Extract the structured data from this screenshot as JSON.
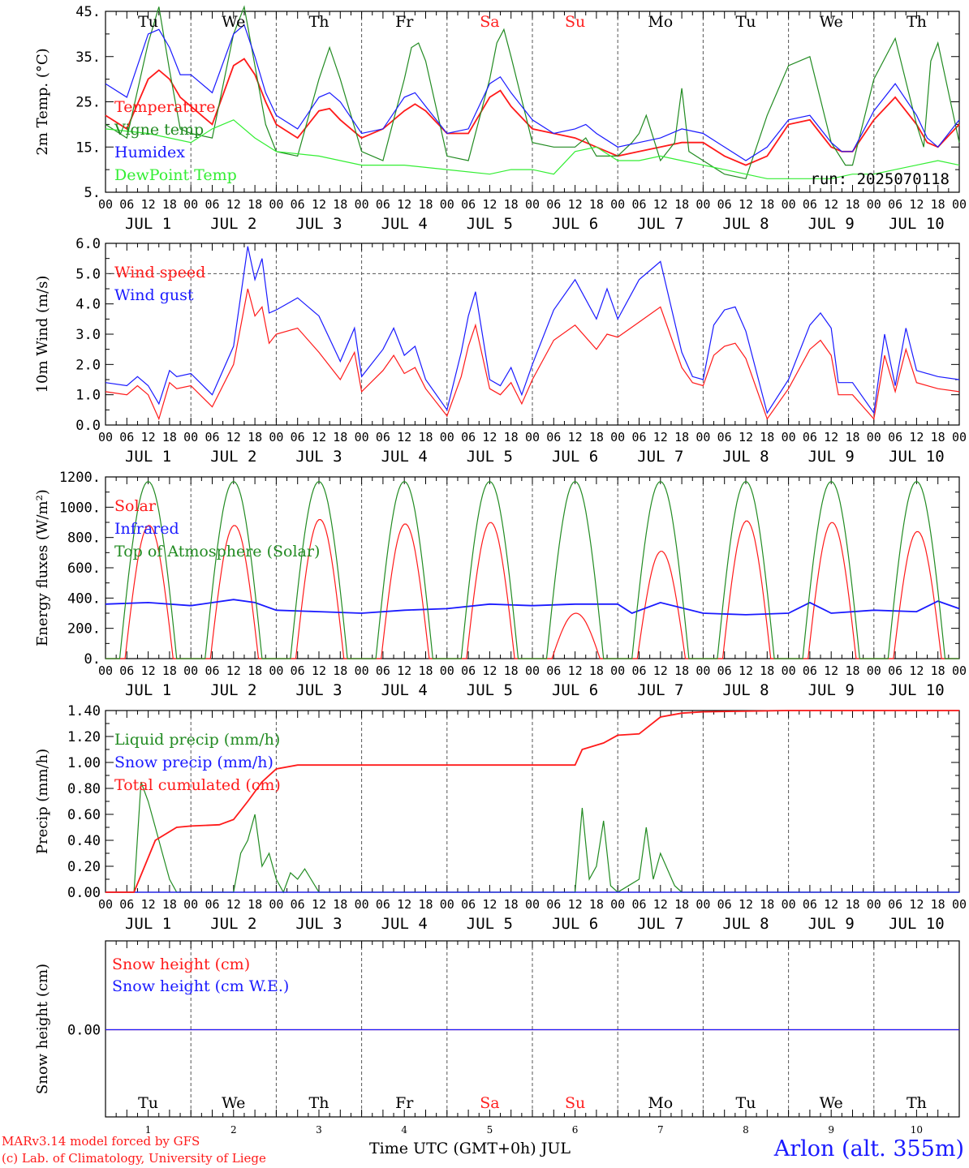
{
  "page": {
    "footer_left_1": "MARv3.14 model forced by GFS",
    "footer_left_2": "(c) Lab. of Climatology, University of Liege",
    "footer_center": "Time UTC (GMT+0h) JUL",
    "footer_right": "Arlon (alt. 355m)"
  },
  "colors": {
    "red": "#ff1a1a",
    "darkgreen": "#228b22",
    "blue": "#1a1aff",
    "lightgreen": "#33ee33",
    "weekend": "#ff2020",
    "black": "#000000"
  },
  "day_names": [
    "Tu",
    "We",
    "Th",
    "Fr",
    "Sa",
    "Su",
    "Mo",
    "Tu",
    "We",
    "Th"
  ],
  "weekend_days": [
    4,
    5
  ],
  "date_labels": [
    "JUL  1",
    "JUL  2",
    "JUL  3",
    "JUL  4",
    "JUL  5",
    "JUL  6",
    "JUL  7",
    "JUL  8",
    "JUL  9",
    "JUL 10"
  ],
  "hour_labels": [
    "00",
    "06",
    "12",
    "18"
  ],
  "day_numbers": [
    "1",
    "2",
    "3",
    "4",
    "5",
    "6",
    "7",
    "8",
    "9",
    "10"
  ],
  "chart_data": [
    {
      "type": "line",
      "ylabel": "2m Temp. (°C)",
      "ylim": [
        5,
        45
      ],
      "yticks": [
        "5.",
        "15.",
        "25.",
        "35.",
        "45."
      ],
      "annotation": "run: 2025070118",
      "x_unit": "hours since JUL 1 00 UTC",
      "series": [
        {
          "name": "Temperature",
          "color": "red",
          "x": [
            0,
            6,
            12,
            15,
            18,
            21,
            24,
            30,
            36,
            39,
            42,
            45,
            48,
            54,
            60,
            63,
            66,
            72,
            78,
            84,
            87,
            90,
            96,
            102,
            108,
            111,
            114,
            120,
            126,
            132,
            135,
            138,
            144,
            150,
            156,
            162,
            168,
            174,
            180,
            186,
            192,
            198,
            204,
            207,
            210,
            216,
            222,
            228,
            231,
            234,
            240
          ],
          "values": [
            22,
            19,
            30,
            32,
            30,
            26,
            24,
            20,
            33,
            34.5,
            31,
            25,
            20,
            17,
            23,
            23.5,
            21,
            17,
            19,
            23,
            24.5,
            23,
            18,
            18,
            26,
            27.5,
            24,
            19,
            18,
            17,
            16,
            15,
            13,
            14,
            15,
            16,
            16,
            13,
            11,
            13,
            20,
            21,
            15,
            14,
            14,
            21,
            26,
            20,
            16,
            15,
            20
          ]
        },
        {
          "name": "Vigne temp",
          "color": "darkgreen",
          "x": [
            0,
            6,
            12,
            15,
            18,
            21,
            24,
            30,
            36,
            39,
            42,
            45,
            48,
            54,
            60,
            63,
            66,
            72,
            78,
            84,
            86,
            88,
            90,
            96,
            102,
            108,
            110,
            112,
            114,
            120,
            126,
            132,
            135,
            138,
            144,
            148,
            150,
            152,
            156,
            160,
            162,
            164,
            168,
            174,
            180,
            186,
            192,
            198,
            204,
            208,
            210,
            216,
            222,
            228,
            230,
            232,
            234,
            240
          ],
          "values": [
            20,
            17,
            38,
            46,
            32,
            19,
            18,
            17,
            40,
            46,
            33,
            20,
            14,
            13,
            30,
            37,
            30,
            14,
            12,
            30,
            37,
            38,
            34,
            13,
            12,
            30,
            38,
            41,
            35,
            16,
            15,
            15,
            17,
            13,
            13,
            16,
            18,
            22,
            12,
            16,
            28,
            14,
            12,
            9,
            8,
            22,
            33,
            35,
            16,
            11,
            11,
            30,
            39,
            20,
            15,
            34,
            38,
            16
          ]
        },
        {
          "name": "Humidex",
          "color": "blue",
          "x": [
            0,
            6,
            12,
            15,
            18,
            21,
            24,
            30,
            36,
            39,
            42,
            45,
            48,
            54,
            60,
            63,
            66,
            72,
            78,
            84,
            87,
            90,
            96,
            102,
            108,
            111,
            114,
            120,
            126,
            132,
            135,
            138,
            144,
            150,
            156,
            162,
            168,
            174,
            180,
            186,
            192,
            198,
            204,
            207,
            210,
            216,
            222,
            228,
            231,
            234,
            240
          ],
          "values": [
            29,
            26,
            40,
            41,
            37,
            31,
            31,
            27,
            40,
            42,
            35,
            27,
            22,
            19,
            26,
            27,
            25,
            18,
            19,
            26,
            27,
            24,
            18,
            19,
            29,
            30.5,
            27,
            21,
            18,
            19,
            20,
            18,
            15,
            16,
            17,
            19,
            18,
            15,
            12,
            15,
            21,
            22,
            16,
            14,
            14,
            23,
            29,
            22,
            17,
            15,
            21
          ]
        },
        {
          "name": "DewPoint Temp",
          "color": "lightgreen",
          "x": [
            0,
            12,
            24,
            30,
            36,
            42,
            48,
            60,
            72,
            84,
            96,
            108,
            114,
            120,
            126,
            132,
            138,
            144,
            150,
            156,
            162,
            168,
            174,
            180,
            186,
            192,
            198,
            204,
            210,
            216,
            222,
            228,
            234,
            240
          ],
          "values": [
            19,
            18,
            16,
            19,
            21,
            17,
            14,
            13,
            11,
            11,
            10,
            9,
            10,
            10,
            9,
            14,
            15,
            12,
            12,
            13,
            12,
            11,
            10,
            9,
            8,
            8,
            8,
            8,
            9,
            9,
            10,
            11,
            12,
            11
          ]
        }
      ]
    },
    {
      "type": "line",
      "ylabel": "10m Wind (m/s)",
      "ylim": [
        0,
        6
      ],
      "yticks": [
        "0.0",
        "1.0",
        "2.0",
        "3.0",
        "4.0",
        "5.0",
        "6.0"
      ],
      "reference_line": 5,
      "x_unit": "hours since JUL 1 00 UTC",
      "series": [
        {
          "name": "Wind speed",
          "color": "red",
          "x": [
            0,
            6,
            9,
            12,
            15,
            18,
            20,
            24,
            30,
            36,
            40,
            42,
            44,
            46,
            48,
            54,
            60,
            66,
            70,
            72,
            78,
            81,
            84,
            87,
            90,
            96,
            100,
            102,
            104,
            108,
            111,
            114,
            117,
            120,
            126,
            132,
            138,
            141,
            144,
            150,
            156,
            162,
            165,
            168,
            171,
            174,
            177,
            180,
            186,
            192,
            198,
            201,
            204,
            206,
            210,
            216,
            219,
            222,
            225,
            228,
            234,
            240
          ],
          "values": [
            1.1,
            1.0,
            1.3,
            1.0,
            0.2,
            1.4,
            1.2,
            1.3,
            0.6,
            2.0,
            4.5,
            3.6,
            3.9,
            2.7,
            3.0,
            3.2,
            2.4,
            1.5,
            2.4,
            1.1,
            1.8,
            2.3,
            1.7,
            1.9,
            1.2,
            0.3,
            1.6,
            2.6,
            3.3,
            1.2,
            1.0,
            1.4,
            0.7,
            1.5,
            2.8,
            3.3,
            2.5,
            3.0,
            2.9,
            3.4,
            3.9,
            1.9,
            1.4,
            1.3,
            2.3,
            2.6,
            2.7,
            2.2,
            0.2,
            1.2,
            2.5,
            2.8,
            2.3,
            1.0,
            1.0,
            0.2,
            2.3,
            1.1,
            2.5,
            1.4,
            1.2,
            1.1
          ]
        },
        {
          "name": "Wind gust",
          "color": "blue",
          "x": [
            0,
            6,
            9,
            12,
            15,
            18,
            20,
            24,
            30,
            36,
            40,
            42,
            44,
            46,
            48,
            54,
            60,
            66,
            70,
            72,
            78,
            81,
            84,
            87,
            90,
            96,
            100,
            102,
            104,
            108,
            111,
            114,
            117,
            120,
            126,
            132,
            138,
            141,
            144,
            150,
            156,
            162,
            165,
            168,
            171,
            174,
            177,
            180,
            186,
            192,
            198,
            201,
            204,
            206,
            210,
            216,
            219,
            222,
            225,
            228,
            234,
            240
          ],
          "values": [
            1.4,
            1.3,
            1.6,
            1.3,
            0.7,
            1.8,
            1.6,
            1.7,
            1.0,
            2.6,
            5.9,
            4.8,
            5.5,
            3.7,
            3.8,
            4.2,
            3.6,
            2.1,
            3.2,
            1.6,
            2.5,
            3.2,
            2.3,
            2.6,
            1.5,
            0.5,
            2.4,
            3.6,
            4.4,
            1.5,
            1.3,
            1.9,
            1.0,
            2.0,
            3.8,
            4.8,
            3.5,
            4.5,
            3.5,
            4.8,
            5.4,
            2.4,
            1.6,
            1.5,
            3.3,
            3.8,
            3.9,
            3.1,
            0.4,
            1.5,
            3.3,
            3.7,
            3.2,
            1.4,
            1.4,
            0.4,
            3.0,
            1.3,
            3.2,
            1.8,
            1.6,
            1.5
          ]
        }
      ]
    },
    {
      "type": "line",
      "ylabel": "Energy fluxes (W/m²)",
      "ylim": [
        0,
        1200
      ],
      "yticks": [
        "0.",
        "200.",
        "400.",
        "600.",
        "800.",
        "1000.",
        "1200."
      ],
      "x_unit": "hours since JUL 1 00 UTC",
      "series": [
        {
          "name": "Solar",
          "color": "red",
          "daily_peak": [
            880,
            880,
            920,
            890,
            900,
            300,
            710,
            910,
            900,
            840
          ]
        },
        {
          "name": "Infrared",
          "color": "blue",
          "x": [
            0,
            12,
            24,
            36,
            42,
            48,
            60,
            72,
            84,
            96,
            108,
            120,
            132,
            144,
            148,
            156,
            168,
            180,
            192,
            198,
            204,
            216,
            228,
            234,
            240
          ],
          "values": [
            360,
            370,
            350,
            390,
            370,
            320,
            310,
            300,
            320,
            330,
            360,
            350,
            360,
            360,
            300,
            370,
            300,
            290,
            300,
            370,
            300,
            320,
            310,
            380,
            330
          ]
        },
        {
          "name": "Top of Atmosphere (Solar)",
          "color": "darkgreen",
          "daily_peak": [
            1170,
            1170,
            1170,
            1170,
            1170,
            1170,
            1170,
            1170,
            1170,
            1170
          ]
        }
      ]
    },
    {
      "type": "line",
      "ylabel": "Precip (mm/h)",
      "ylim": [
        0,
        1.4
      ],
      "yticks": [
        "0.00",
        "0.20",
        "0.40",
        "0.60",
        "0.80",
        "1.00",
        "1.20",
        "1.40"
      ],
      "x_unit": "hours since JUL 1 00 UTC",
      "series": [
        {
          "name": "Liquid precip (mm/h)",
          "color": "darkgreen",
          "x": [
            0,
            8,
            10,
            12,
            14,
            16,
            18,
            20,
            24,
            36,
            38,
            40,
            42,
            44,
            46,
            48,
            50,
            52,
            54,
            56,
            60,
            132,
            134,
            136,
            138,
            140,
            142,
            144,
            150,
            152,
            154,
            156,
            160,
            162,
            170,
            180,
            240
          ],
          "values": [
            0,
            0,
            0.85,
            0.7,
            0.5,
            0.3,
            0.1,
            0,
            0,
            0,
            0.3,
            0.4,
            0.6,
            0.2,
            0.3,
            0.1,
            0,
            0.15,
            0.1,
            0.18,
            0,
            0,
            0.65,
            0.1,
            0.2,
            0.55,
            0.05,
            0,
            0.1,
            0.5,
            0.1,
            0.3,
            0.05,
            0,
            0,
            0,
            0
          ]
        },
        {
          "name": "Snow precip (mm/h)",
          "color": "blue",
          "x": [
            0,
            240
          ],
          "values": [
            0,
            0
          ]
        },
        {
          "name": "Total cumulated (cm)",
          "color": "red",
          "x": [
            0,
            8,
            14,
            20,
            24,
            32,
            36,
            40,
            44,
            48,
            54,
            60,
            120,
            132,
            134,
            140,
            144,
            150,
            156,
            162,
            168,
            192,
            240
          ],
          "values": [
            0,
            0,
            0.4,
            0.5,
            0.51,
            0.52,
            0.56,
            0.7,
            0.85,
            0.95,
            0.98,
            0.98,
            0.98,
            0.98,
            1.1,
            1.15,
            1.21,
            1.22,
            1.35,
            1.38,
            1.39,
            1.4,
            1.4
          ]
        }
      ]
    },
    {
      "type": "line",
      "ylabel": "Snow height (cm)",
      "ytick_value": "0.00",
      "x_unit": "hours since JUL 1 00 UTC",
      "series": [
        {
          "name": "Snow height (cm)",
          "color": "red",
          "x": [
            0,
            240
          ],
          "values": [
            0,
            0
          ]
        },
        {
          "name": "Snow height (cm W.E.)",
          "color": "blue",
          "x": [
            0,
            240
          ],
          "values": [
            0,
            0
          ]
        }
      ]
    }
  ]
}
